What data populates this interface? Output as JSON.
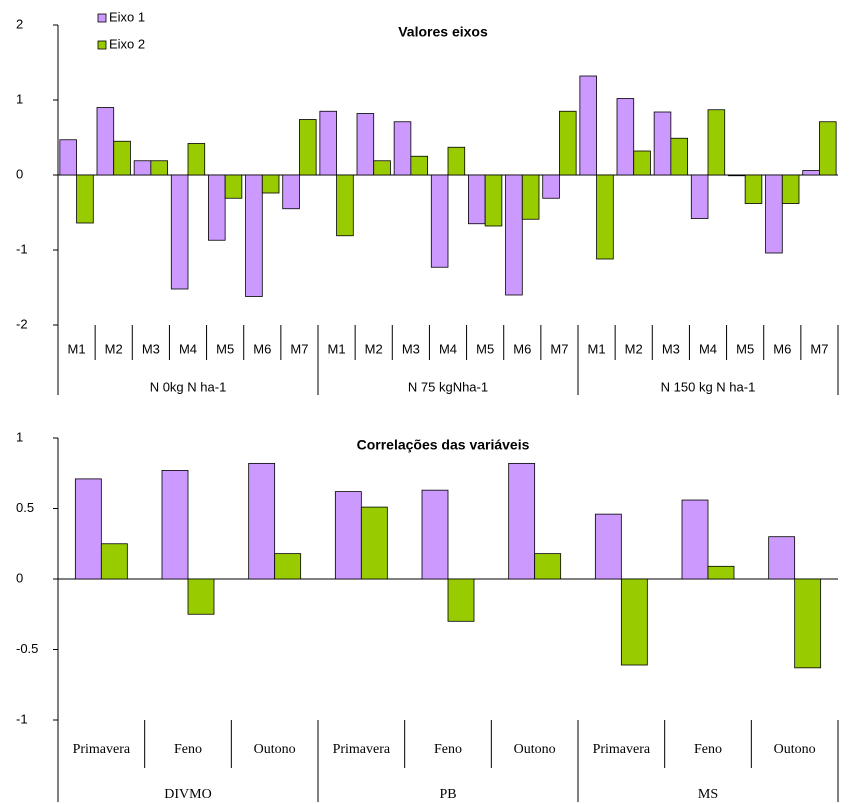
{
  "chart_data": [
    {
      "type": "bar",
      "title": "Valores eixos",
      "groups": [
        {
          "name": "N 0kg N ha-1",
          "categories": [
            "M1",
            "M2",
            "M3",
            "M4",
            "M5",
            "M6",
            "M7"
          ]
        },
        {
          "name": "N 75 kgNha-1",
          "categories": [
            "M1",
            "M2",
            "M3",
            "M4",
            "M5",
            "M6",
            "M7"
          ]
        },
        {
          "name": "N 150 kg N ha-1",
          "categories": [
            "M1",
            "M2",
            "M3",
            "M4",
            "M5",
            "M6",
            "M7"
          ]
        }
      ],
      "series": [
        {
          "name": "Eixo 1",
          "color": "#cc99ff",
          "values": [
            0.47,
            0.9,
            0.19,
            -1.52,
            -0.87,
            -1.62,
            -0.45,
            0.85,
            0.82,
            0.71,
            -1.23,
            -0.65,
            -1.6,
            -0.31,
            1.32,
            1.02,
            0.84,
            -0.58,
            -0.01,
            -1.04,
            0.06
          ]
        },
        {
          "name": "Eixo 2",
          "color": "#99cc00",
          "values": [
            -0.64,
            0.45,
            0.19,
            0.42,
            -0.31,
            -0.24,
            0.74,
            -0.81,
            0.19,
            0.25,
            0.37,
            -0.68,
            -0.59,
            0.85,
            -1.12,
            0.32,
            0.49,
            0.87,
            -0.38,
            -0.38,
            0.71
          ]
        }
      ],
      "ylim": [
        -2,
        2
      ],
      "yticks": [
        -2,
        -1,
        0,
        1,
        2
      ],
      "legend": "top-left"
    },
    {
      "type": "bar",
      "title": "Correlações das variáveis",
      "groups": [
        {
          "name": "DIVMO",
          "categories": [
            "Primavera",
            "Feno",
            "Outono"
          ]
        },
        {
          "name": "PB",
          "categories": [
            "Primavera",
            "Feno",
            "Outono"
          ]
        },
        {
          "name": "MS",
          "categories": [
            "Primavera",
            "Feno",
            "Outono"
          ]
        }
      ],
      "series": [
        {
          "color": "#cc99ff",
          "values": [
            0.71,
            0.77,
            0.82,
            0.62,
            0.63,
            0.82,
            0.46,
            0.56,
            0.3
          ]
        },
        {
          "color": "#99cc00",
          "values": [
            0.25,
            -0.25,
            0.18,
            0.51,
            -0.3,
            0.18,
            -0.61,
            0.09,
            -0.63
          ]
        }
      ],
      "ylim": [
        -1,
        1
      ],
      "yticks": [
        -1,
        -0.5,
        0,
        0.5,
        1
      ]
    }
  ]
}
